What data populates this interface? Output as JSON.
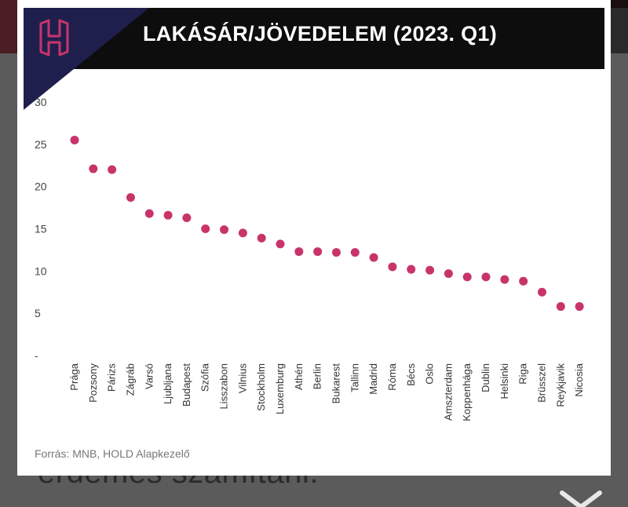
{
  "background": {
    "behind_text": "érdemes számítani."
  },
  "colors": {
    "point": "#c8346a",
    "logo": "#c8346a",
    "header_bg": "#0d0d0d",
    "logo_triangle": "#1f1f4d"
  },
  "source": "Forrás: MNB, HOLD Alapkezelő",
  "chart_data": {
    "type": "scatter",
    "title": "LAKÁSÁR/JÖVEDELEM (2023. Q1)",
    "xlabel": "",
    "ylabel": "",
    "ylim": [
      0,
      30
    ],
    "yticks": [
      "30",
      "25",
      "20",
      "15",
      "10",
      "5",
      "-"
    ],
    "ytick_values": [
      30,
      25,
      20,
      15,
      10,
      5,
      0
    ],
    "grid": false,
    "categories": [
      "Prága",
      "Pozsony",
      "Párizs",
      "Zágráb",
      "Varsó",
      "Ljubljana",
      "Budapest",
      "Szófia",
      "Lisszabon",
      "Vilnius",
      "Stockholm",
      "Luxemburg",
      "Athén",
      "Berlin",
      "Bukarest",
      "Tallinn",
      "Madrid",
      "Róma",
      "Bécs",
      "Oslo",
      "Amszterdam",
      "Koppenhága",
      "Dublin",
      "Helsinki",
      "Riga",
      "Brüsszel",
      "Reykjavik",
      "Nicosia"
    ],
    "values": [
      25.5,
      22.1,
      22.0,
      18.7,
      16.8,
      16.6,
      16.3,
      15.0,
      14.9,
      14.5,
      13.9,
      13.2,
      12.3,
      12.3,
      12.2,
      12.2,
      11.6,
      10.5,
      10.2,
      10.1,
      9.7,
      9.3,
      9.3,
      9.0,
      8.8,
      7.5,
      5.8,
      5.8
    ]
  }
}
